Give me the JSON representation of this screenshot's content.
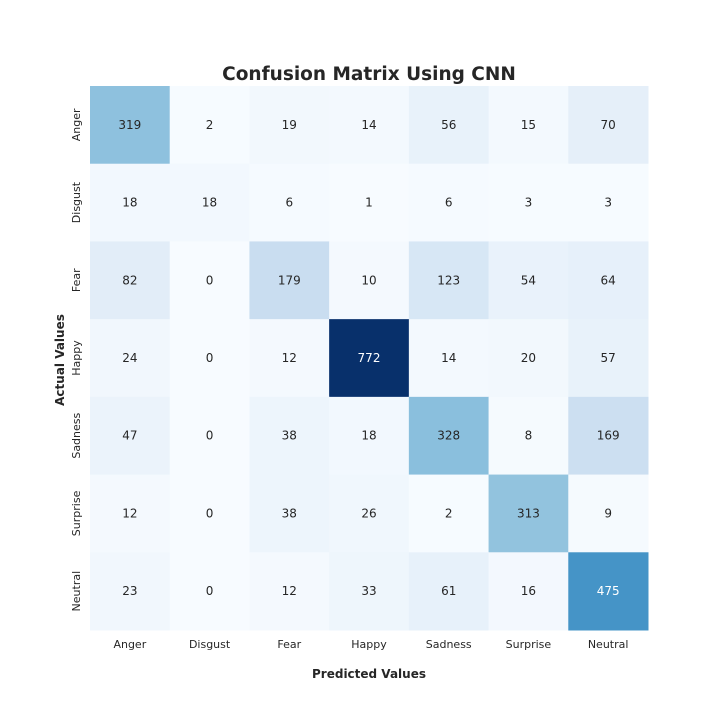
{
  "chart_data": {
    "type": "heatmap",
    "title": "Confusion Matrix Using CNN",
    "xlabel": "Predicted Values",
    "ylabel": "Actual Values",
    "x_categories": [
      "Anger",
      "Disgust",
      "Fear",
      "Happy",
      "Sadness",
      "Surprise",
      "Neutral"
    ],
    "y_categories": [
      "Anger",
      "Disgust",
      "Fear",
      "Happy",
      "Sadness",
      "Surprise",
      "Neutral"
    ],
    "matrix": [
      [
        319,
        2,
        19,
        14,
        56,
        15,
        70
      ],
      [
        18,
        18,
        6,
        1,
        6,
        3,
        3
      ],
      [
        82,
        0,
        179,
        10,
        123,
        54,
        64
      ],
      [
        24,
        0,
        12,
        772,
        14,
        20,
        57
      ],
      [
        47,
        0,
        38,
        18,
        328,
        8,
        169
      ],
      [
        12,
        0,
        38,
        26,
        2,
        313,
        9
      ],
      [
        23,
        0,
        12,
        33,
        61,
        16,
        475
      ]
    ],
    "colormap": "Blues",
    "vmin": 0,
    "vmax": 772,
    "colorbar": false
  }
}
